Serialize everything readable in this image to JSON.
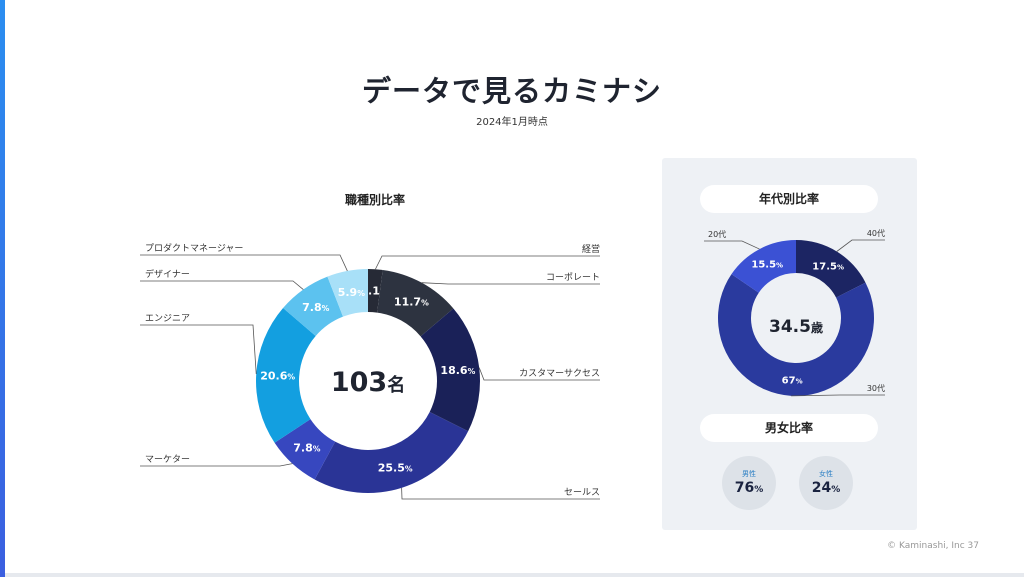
{
  "slide": {
    "title": "データで見るカミナシ",
    "subtitle": "2024年1月時点",
    "footer": "© Kaminashi, Inc  37"
  },
  "job": {
    "title": "職種別比率",
    "center_number": "103",
    "center_unit": "名"
  },
  "age": {
    "title": "年代別比率",
    "center_number": "34.5",
    "center_unit": "歳"
  },
  "gender": {
    "title": "男女比率",
    "male_label": "男性",
    "male_value": "76",
    "female_label": "女性",
    "female_value": "24",
    "unit": "%"
  },
  "chart_data": [
    {
      "type": "pie",
      "title": "職種別比率",
      "center_label": "103名",
      "slices": [
        {
          "label": "経営",
          "value": 2.1,
          "color": "#262a36"
        },
        {
          "label": "コーポレート",
          "value": 11.7,
          "color": "#2d3340"
        },
        {
          "label": "カスタマーサクセス",
          "value": 18.6,
          "color": "#1a2158"
        },
        {
          "label": "セールス",
          "value": 25.5,
          "color": "#2a3496"
        },
        {
          "label": "マーケター",
          "value": 7.8,
          "color": "#3747bf"
        },
        {
          "label": "エンジニア",
          "value": 20.6,
          "color": "#139fe0"
        },
        {
          "label": "デザイナー",
          "value": 7.8,
          "color": "#5cc2ef"
        },
        {
          "label": "プロダクトマネージャー",
          "value": 5.9,
          "color": "#a8e0f8"
        }
      ]
    },
    {
      "type": "pie",
      "title": "年代別比率",
      "center_label": "34.5歳",
      "slices": [
        {
          "label": "40代",
          "value": 17.5,
          "color": "#1c2563"
        },
        {
          "label": "30代",
          "value": 67,
          "color": "#2a3a9e"
        },
        {
          "label": "20代",
          "value": 15.5,
          "color": "#3b51d4"
        }
      ]
    },
    {
      "type": "table",
      "title": "男女比率",
      "rows": [
        {
          "label": "男性",
          "value": 76
        },
        {
          "label": "女性",
          "value": 24
        }
      ]
    }
  ]
}
